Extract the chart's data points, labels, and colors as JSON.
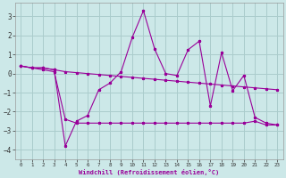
{
  "xlabel": "Windchill (Refroidissement éolien,°C)",
  "background_color": "#cce8e8",
  "grid_color": "#aacccc",
  "line_color": "#990099",
  "xlim": [
    -0.5,
    23.5
  ],
  "ylim": [
    -4.5,
    3.7
  ],
  "yticks": [
    -4,
    -3,
    -2,
    -1,
    0,
    1,
    2,
    3
  ],
  "xticks": [
    0,
    1,
    2,
    3,
    4,
    5,
    6,
    7,
    8,
    9,
    10,
    11,
    12,
    13,
    14,
    15,
    16,
    17,
    18,
    19,
    20,
    21,
    22,
    23
  ],
  "series1_x": [
    0,
    1,
    2,
    3,
    4,
    5,
    6,
    7,
    8,
    9,
    10,
    11,
    12,
    13,
    14,
    15,
    16,
    17,
    18,
    19,
    20,
    21,
    22,
    23
  ],
  "series1_y": [
    0.4,
    0.3,
    0.3,
    0.2,
    0.1,
    0.05,
    0.0,
    -0.05,
    -0.1,
    -0.15,
    -0.2,
    -0.25,
    -0.3,
    -0.35,
    -0.4,
    -0.45,
    -0.5,
    -0.55,
    -0.6,
    -0.65,
    -0.7,
    -0.75,
    -0.8,
    -0.85
  ],
  "series2_x": [
    0,
    1,
    2,
    3,
    4,
    5,
    6,
    7,
    8,
    9,
    10,
    11,
    12,
    13,
    14,
    15,
    16,
    17,
    18,
    19,
    20,
    21,
    22,
    23
  ],
  "series2_y": [
    0.4,
    0.3,
    0.3,
    0.2,
    -3.8,
    -2.5,
    -2.2,
    -0.85,
    -0.5,
    0.1,
    1.9,
    3.3,
    1.3,
    0.0,
    -0.1,
    1.25,
    1.7,
    -1.7,
    1.1,
    -0.9,
    -0.1,
    -2.3,
    -2.6,
    -2.7
  ],
  "series3_x": [
    0,
    1,
    2,
    3,
    4,
    5,
    6,
    7,
    8,
    9,
    10,
    11,
    12,
    13,
    14,
    15,
    16,
    17,
    18,
    19,
    20,
    21,
    22,
    23
  ],
  "series3_y": [
    0.4,
    0.3,
    0.2,
    0.1,
    -2.4,
    -2.6,
    -2.6,
    -2.6,
    -2.6,
    -2.6,
    -2.6,
    -2.6,
    -2.6,
    -2.6,
    -2.6,
    -2.6,
    -2.6,
    -2.6,
    -2.6,
    -2.6,
    -2.6,
    -2.5,
    -2.7,
    -2.7
  ]
}
